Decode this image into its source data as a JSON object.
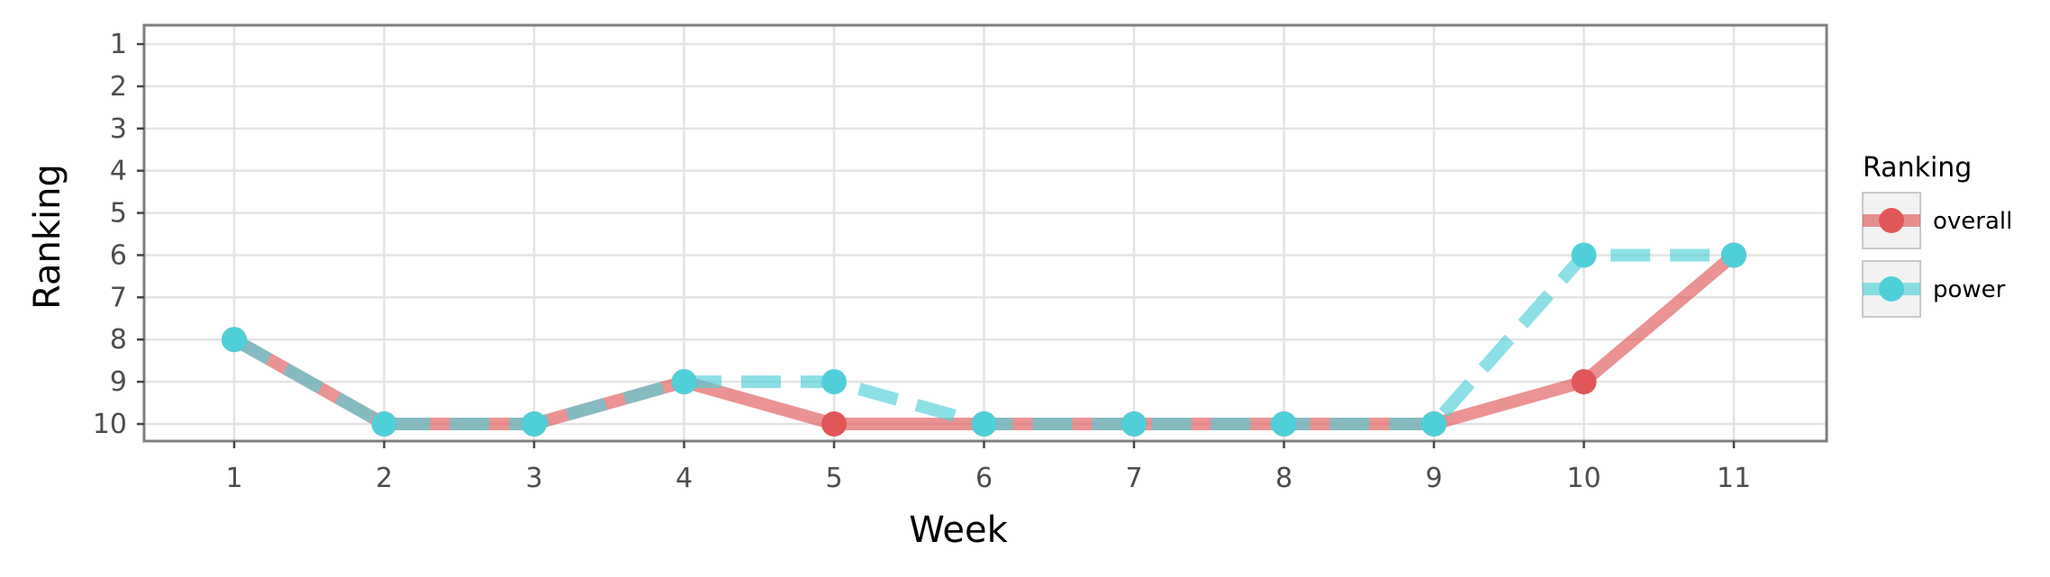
{
  "chart_data": {
    "type": "line",
    "title": "",
    "xlabel": "Week",
    "ylabel": "Ranking",
    "x": [
      1,
      2,
      3,
      4,
      5,
      6,
      7,
      8,
      9,
      10,
      11
    ],
    "x_tick_labels": [
      "1",
      "2",
      "3",
      "4",
      "5",
      "6",
      "7",
      "8",
      "9",
      "10",
      "11"
    ],
    "y_tick_labels": [
      "1",
      "2",
      "3",
      "4",
      "5",
      "6",
      "7",
      "8",
      "9",
      "10"
    ],
    "ylim": [
      1,
      10
    ],
    "y_reversed": true,
    "grid": true,
    "legend": {
      "title": "Ranking",
      "position": "right"
    },
    "series": [
      {
        "name": "overall",
        "values": [
          8,
          10,
          10,
          9,
          10,
          10,
          10,
          10,
          10,
          9,
          6
        ],
        "color": "#e15759",
        "line_style": "solid"
      },
      {
        "name": "power",
        "values": [
          8,
          10,
          10,
          9,
          9,
          10,
          10,
          10,
          10,
          6,
          6
        ],
        "color": "#4fd0d9",
        "line_style": "dashed"
      }
    ]
  }
}
